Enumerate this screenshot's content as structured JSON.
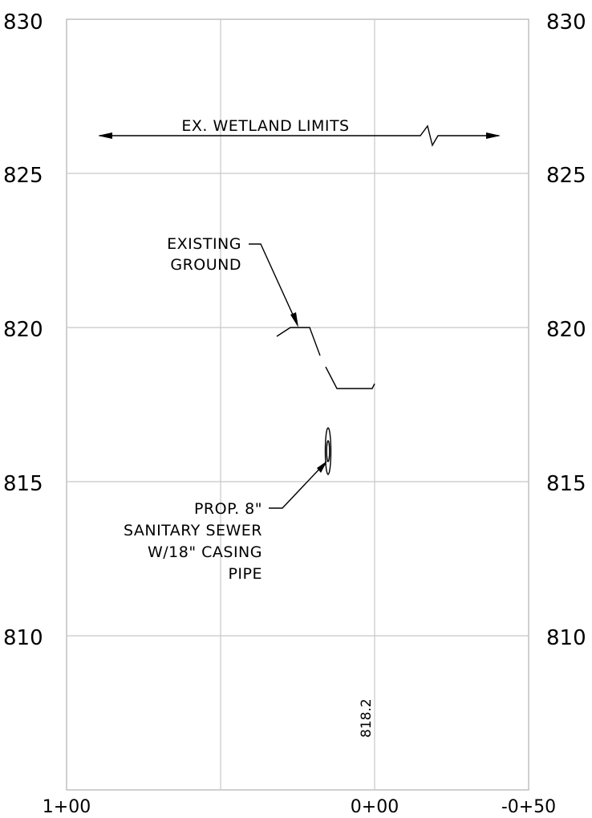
{
  "profile": {
    "elevation_ticks_left": [
      "830",
      "825",
      "820",
      "815",
      "810"
    ],
    "elevation_ticks_right": [
      "830",
      "825",
      "820",
      "815",
      "810"
    ],
    "station_ticks": [
      "1+00",
      "0+00",
      "-0+50"
    ]
  },
  "annotations": {
    "wetland_limits": "EX. WETLAND LIMITS",
    "existing_ground_1": "EXISTING",
    "existing_ground_2": "GROUND",
    "pipe_line_1": "PROP. 8\"",
    "pipe_line_2": "SANITARY SEWER",
    "pipe_line_3": "W/18\" CASING",
    "pipe_line_4": "PIPE",
    "ground_elevation_label": "818.2"
  }
}
